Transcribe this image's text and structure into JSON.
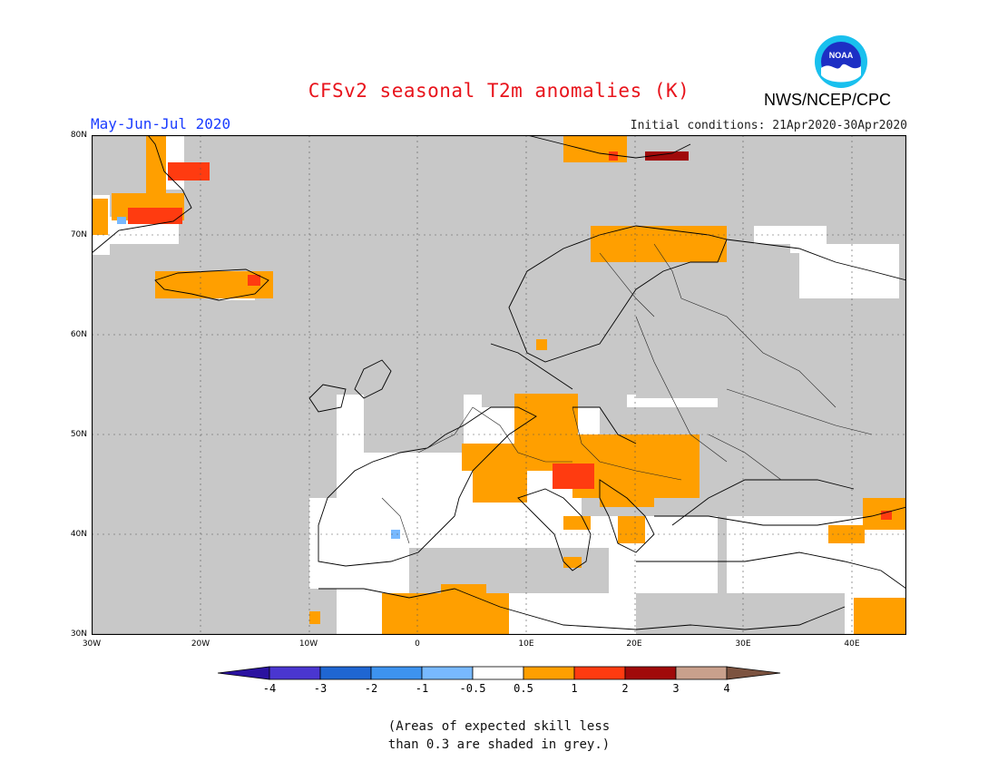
{
  "header": {
    "title": "CFSv2 seasonal T2m anomalies (K)",
    "agency": "NWS/NCEP/CPC",
    "logo_text": "NOAA",
    "period": "May-Jun-Jul 2020",
    "initial_conditions": "Initial conditions: 21Apr2020-30Apr2020"
  },
  "map": {
    "region": "Europe",
    "lat_range": [
      30,
      80
    ],
    "lon_range": [
      -30,
      45
    ],
    "lat_ticks": [
      "80N",
      "70N",
      "60N",
      "50N",
      "40N",
      "30N"
    ],
    "lon_ticks": [
      "30W",
      "20W",
      "10W",
      "0",
      "10E",
      "20E",
      "30E",
      "40E"
    ],
    "colors": {
      "low_skill": "#c8c8c8",
      "neutral": "#ffffff",
      "warm_0_5_1": "#ff9f00",
      "warm_1_2": "#ff3b10",
      "warm_2_3": "#a00a0a",
      "cool_neg1_neg0_5": "#78b9ff",
      "coast": "#000000",
      "grid": "#555555"
    }
  },
  "colorbar": {
    "labels": [
      "-4",
      "-3",
      "-2",
      "-1",
      "-0.5",
      "0.5",
      "1",
      "2",
      "3",
      "4"
    ],
    "colors": [
      "#2a12a0",
      "#4a36d0",
      "#1f66d2",
      "#3d93ef",
      "#78b9ff",
      "#ffffff",
      "#ff9f00",
      "#ff3b10",
      "#a00a0a",
      "#c9a08c",
      "#7c5340"
    ]
  },
  "footnote": {
    "line1": "(Areas of expected skill less",
    "line2": "than 0.3 are shaded in grey.)"
  }
}
